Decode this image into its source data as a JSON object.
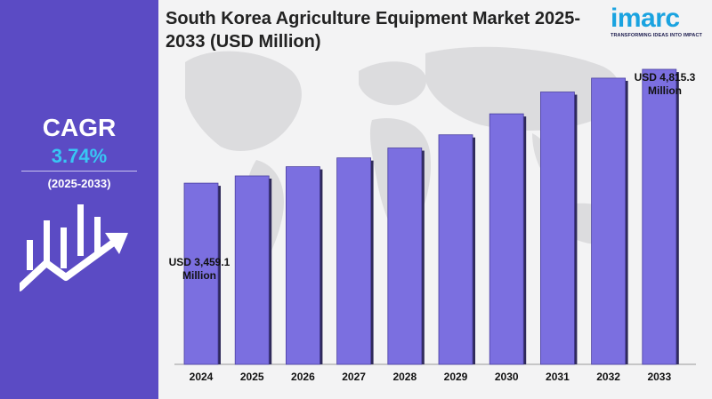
{
  "title": "South Korea Agriculture Equipment Market 2025-2033 (USD Million)",
  "brand": {
    "name": "imarc",
    "tagline": "TRANSFORMING IDEAS INTO IMPACT",
    "color": "#1aa3e0"
  },
  "cagr": {
    "label": "CAGR",
    "value": "3.74%",
    "period": "(2025-2033)"
  },
  "colors": {
    "panel": "#5b4bc4",
    "bar": "#7b6fe0",
    "bar_dark": "#2f2a5a",
    "accent": "#38c6f4"
  },
  "callouts": {
    "first_line1": "USD 3,459.1",
    "first_line2": "Million",
    "last_line1": "USD 4,815.3",
    "last_line2": "Million"
  },
  "chart_data": {
    "type": "bar",
    "title": "South Korea Agriculture Equipment Market 2025-2033 (USD Million)",
    "xlabel": "",
    "ylabel": "",
    "categories": [
      "2024",
      "2025",
      "2026",
      "2027",
      "2028",
      "2029",
      "2030",
      "2031",
      "2032",
      "2033"
    ],
    "values": [
      3459.1,
      3545.0,
      3655.0,
      3760.0,
      3878.0,
      4035.0,
      4285.0,
      4545.0,
      4710.0,
      4815.3
    ],
    "ylim": [
      1300,
      4900
    ],
    "grid": false,
    "legend": "none"
  }
}
